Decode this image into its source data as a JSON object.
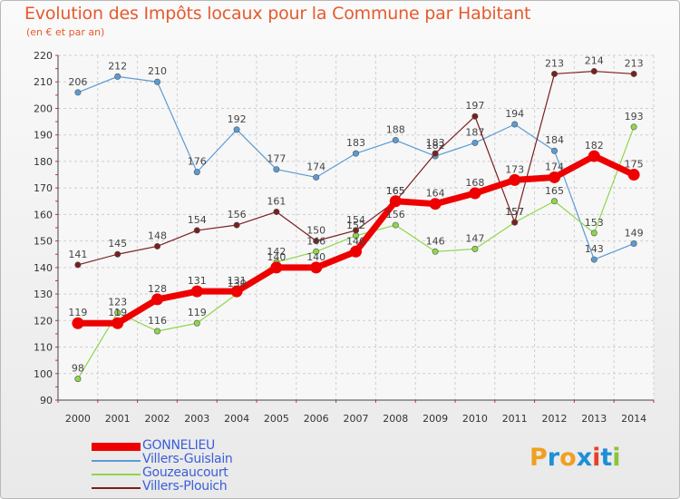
{
  "title": "Evolution des Impôts locaux pour la Commune par Habitant",
  "subtitle": "(en € et par an)",
  "logo": {
    "text": "Proxiti",
    "colors": [
      "#f0a020",
      "#1e8fd6",
      "#f0a020",
      "#1e8fd6",
      "#e8402a",
      "#1e8fd6",
      "#8ac43a"
    ]
  },
  "chart_data": {
    "type": "line",
    "title": "Evolution des Impôts locaux pour la Commune par Habitant",
    "subtitle": "(en € et par an)",
    "xlabel": "",
    "ylabel": "",
    "x": [
      "2000",
      "2001",
      "2002",
      "2003",
      "2004",
      "2005",
      "2006",
      "2007",
      "2008",
      "2009",
      "2010",
      "2011",
      "2012",
      "2013",
      "2014"
    ],
    "ylim": [
      90,
      220
    ],
    "yticks": [
      90,
      100,
      110,
      120,
      130,
      140,
      150,
      160,
      170,
      180,
      190,
      200,
      210,
      220
    ],
    "grid": true,
    "legend_position": "bottom-left",
    "series": [
      {
        "name": "GONNELIEU",
        "color": "#ee0000",
        "thick": true,
        "values": [
          119,
          119,
          128,
          131,
          131,
          140,
          140,
          146,
          165,
          164,
          168,
          173,
          174,
          182,
          175
        ],
        "labels": [
          "119",
          "119",
          "128",
          "131",
          "131",
          "140",
          "140",
          "146",
          "165",
          "164",
          "168",
          "173",
          "174",
          "182",
          "175"
        ]
      },
      {
        "name": "Villers-Guislain",
        "color": "#5b9bd5",
        "thick": false,
        "values": [
          206,
          212,
          210,
          176,
          192,
          177,
          174,
          183,
          188,
          182,
          187,
          194,
          184,
          143,
          149
        ],
        "labels": [
          "206",
          "212",
          "210",
          "176",
          "192",
          "177",
          "174",
          "183",
          "188",
          "182",
          "187",
          "194",
          "184",
          "143",
          "149"
        ]
      },
      {
        "name": "Gouzeaucourt",
        "color": "#8fd64a",
        "thick": false,
        "values": [
          98,
          123,
          116,
          119,
          130,
          142,
          146,
          152,
          156,
          146,
          147,
          157,
          165,
          153,
          193
        ],
        "labels": [
          "98",
          "123",
          "116",
          "119",
          "130",
          "142",
          "146",
          "152",
          "156",
          "146",
          "147",
          "157",
          "165",
          "153",
          "193"
        ]
      },
      {
        "name": "Villers-Plouich",
        "color": "#7a1f1f",
        "thick": false,
        "values": [
          141,
          145,
          148,
          154,
          156,
          161,
          150,
          154,
          165,
          183,
          197,
          157,
          213,
          214,
          213
        ],
        "labels": [
          "141",
          "145",
          "148",
          "154",
          "156",
          "161",
          "150",
          "154",
          "165",
          "183",
          "197",
          "157",
          "213",
          "214",
          "213"
        ]
      }
    ]
  }
}
